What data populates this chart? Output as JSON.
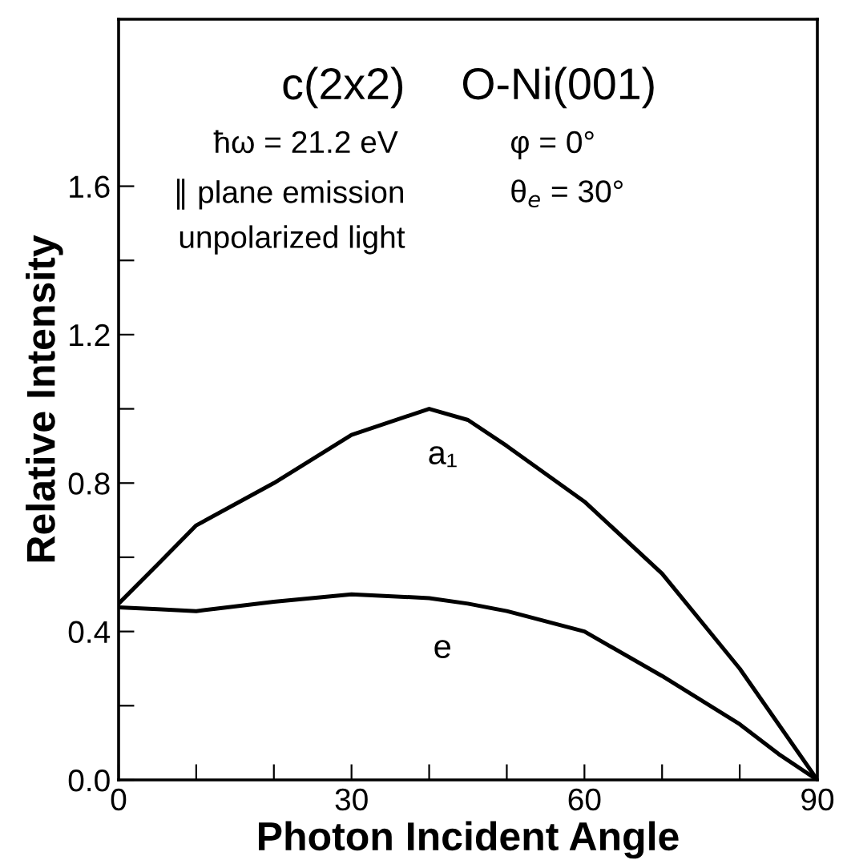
{
  "chart_data": {
    "type": "line",
    "xlabel": "Photon Incident Angle",
    "ylabel": "Relative Intensity",
    "x": [
      0,
      5,
      10,
      20,
      30,
      40,
      45,
      50,
      60,
      70,
      80,
      85,
      90
    ],
    "series": [
      {
        "name": "a₁",
        "color": "#000000",
        "values": [
          0.475,
          0.58,
          0.686,
          0.8,
          0.93,
          1.0,
          0.97,
          0.9,
          0.75,
          0.556,
          0.3,
          0.15,
          0.0
        ]
      },
      {
        "name": "e",
        "color": "#000000",
        "values": [
          0.465,
          0.46,
          0.455,
          0.48,
          0.5,
          0.49,
          0.475,
          0.455,
          0.4,
          0.28,
          0.15,
          0.07,
          0.0
        ]
      }
    ],
    "annotations": [
      "c(2x2)",
      "O-Ni(001)",
      "ħω = 21.2 eV",
      "φ = 0°",
      "∥ plane emission",
      "θ$_{e}$ = 30°",
      "unpolarized light"
    ],
    "xlim": [
      0,
      90
    ],
    "ylim": [
      0,
      2.05
    ],
    "xticks": [
      0,
      {
        "value": 10,
        "label": null
      },
      {
        "value": 20,
        "label": null
      },
      30,
      {
        "value": 40,
        "label": null
      },
      {
        "value": 50,
        "label": null
      },
      60,
      {
        "value": 70,
        "label": null
      },
      {
        "value": 80,
        "label": null
      },
      90
    ],
    "yticks": [
      {
        "value": 0,
        "label": "0.0"
      },
      {
        "value": 0.2,
        "label": null
      },
      {
        "value": 0.4,
        "label": "0.4"
      },
      {
        "value": 0.6,
        "label": null
      },
      {
        "value": 0.8,
        "label": "0.8"
      },
      {
        "value": 1.0,
        "label": null
      },
      {
        "value": 1.2,
        "label": "1.2"
      },
      {
        "value": 1.4,
        "label": null
      },
      {
        "value": 1.6,
        "label": "1.6"
      }
    ],
    "grid": false,
    "legend": false,
    "marker": "none",
    "line_style": "solid"
  }
}
